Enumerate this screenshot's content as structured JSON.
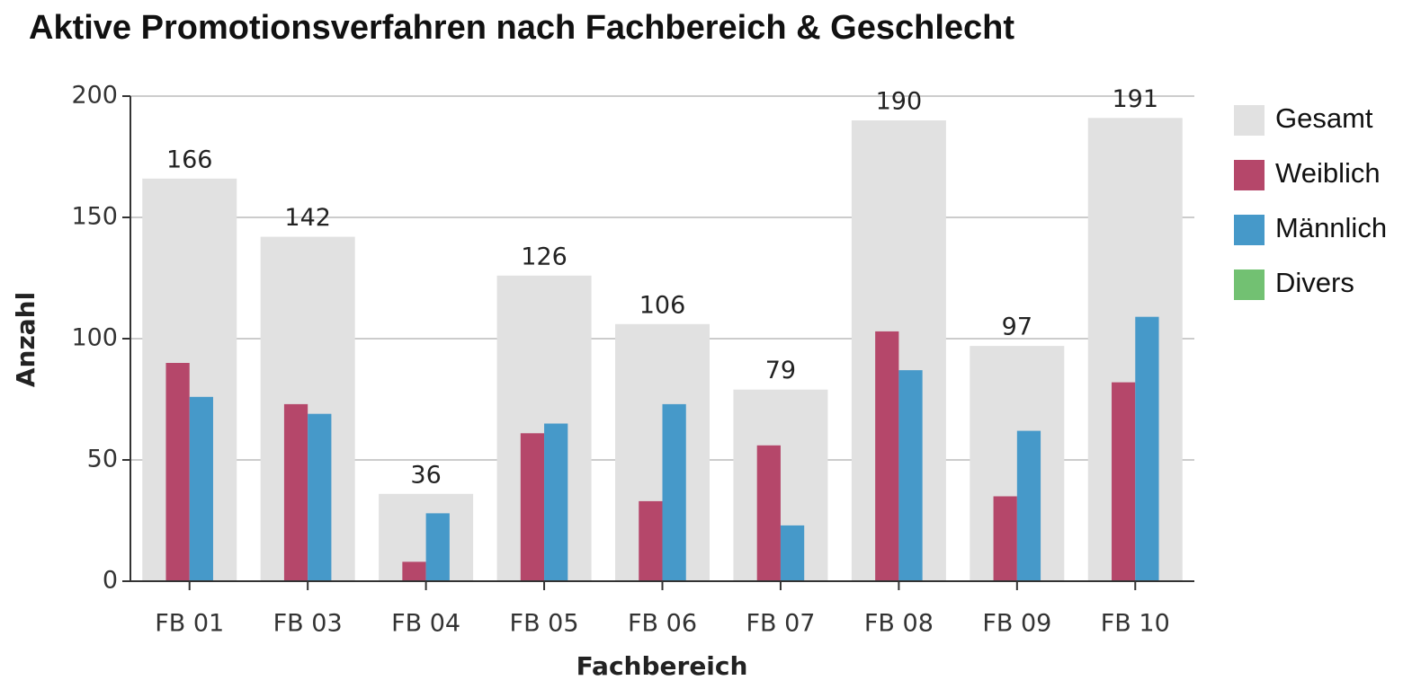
{
  "chart_data": {
    "type": "bar",
    "title": "Aktive Promotionsverfahren nach Fachbereich & Geschlecht",
    "x_label": "Fachbereich",
    "y_label": "Anzahl",
    "categories": [
      "FB 01",
      "FB 03",
      "FB 04",
      "FB 05",
      "FB 06",
      "FB 07",
      "FB 08",
      "FB 09",
      "FB 10"
    ],
    "series": [
      {
        "name": "Gesamt",
        "color": "#e1e1e1",
        "values": [
          166,
          142,
          36,
          126,
          106,
          79,
          190,
          97,
          191
        ]
      },
      {
        "name": "Weiblich",
        "color": "#b5476a",
        "values": [
          90,
          73,
          8,
          61,
          33,
          56,
          103,
          35,
          82
        ]
      },
      {
        "name": "Männlich",
        "color": "#4699c9",
        "values": [
          76,
          69,
          28,
          65,
          73,
          23,
          87,
          62,
          109
        ]
      },
      {
        "name": "Divers",
        "color": "#72c172",
        "values": [
          0,
          0,
          0,
          0,
          0,
          0,
          0,
          0,
          0
        ]
      }
    ],
    "ylim": [
      0,
      200
    ],
    "yticks": [
      0,
      50,
      100,
      150,
      200
    ],
    "grid": true,
    "legend": "right"
  }
}
